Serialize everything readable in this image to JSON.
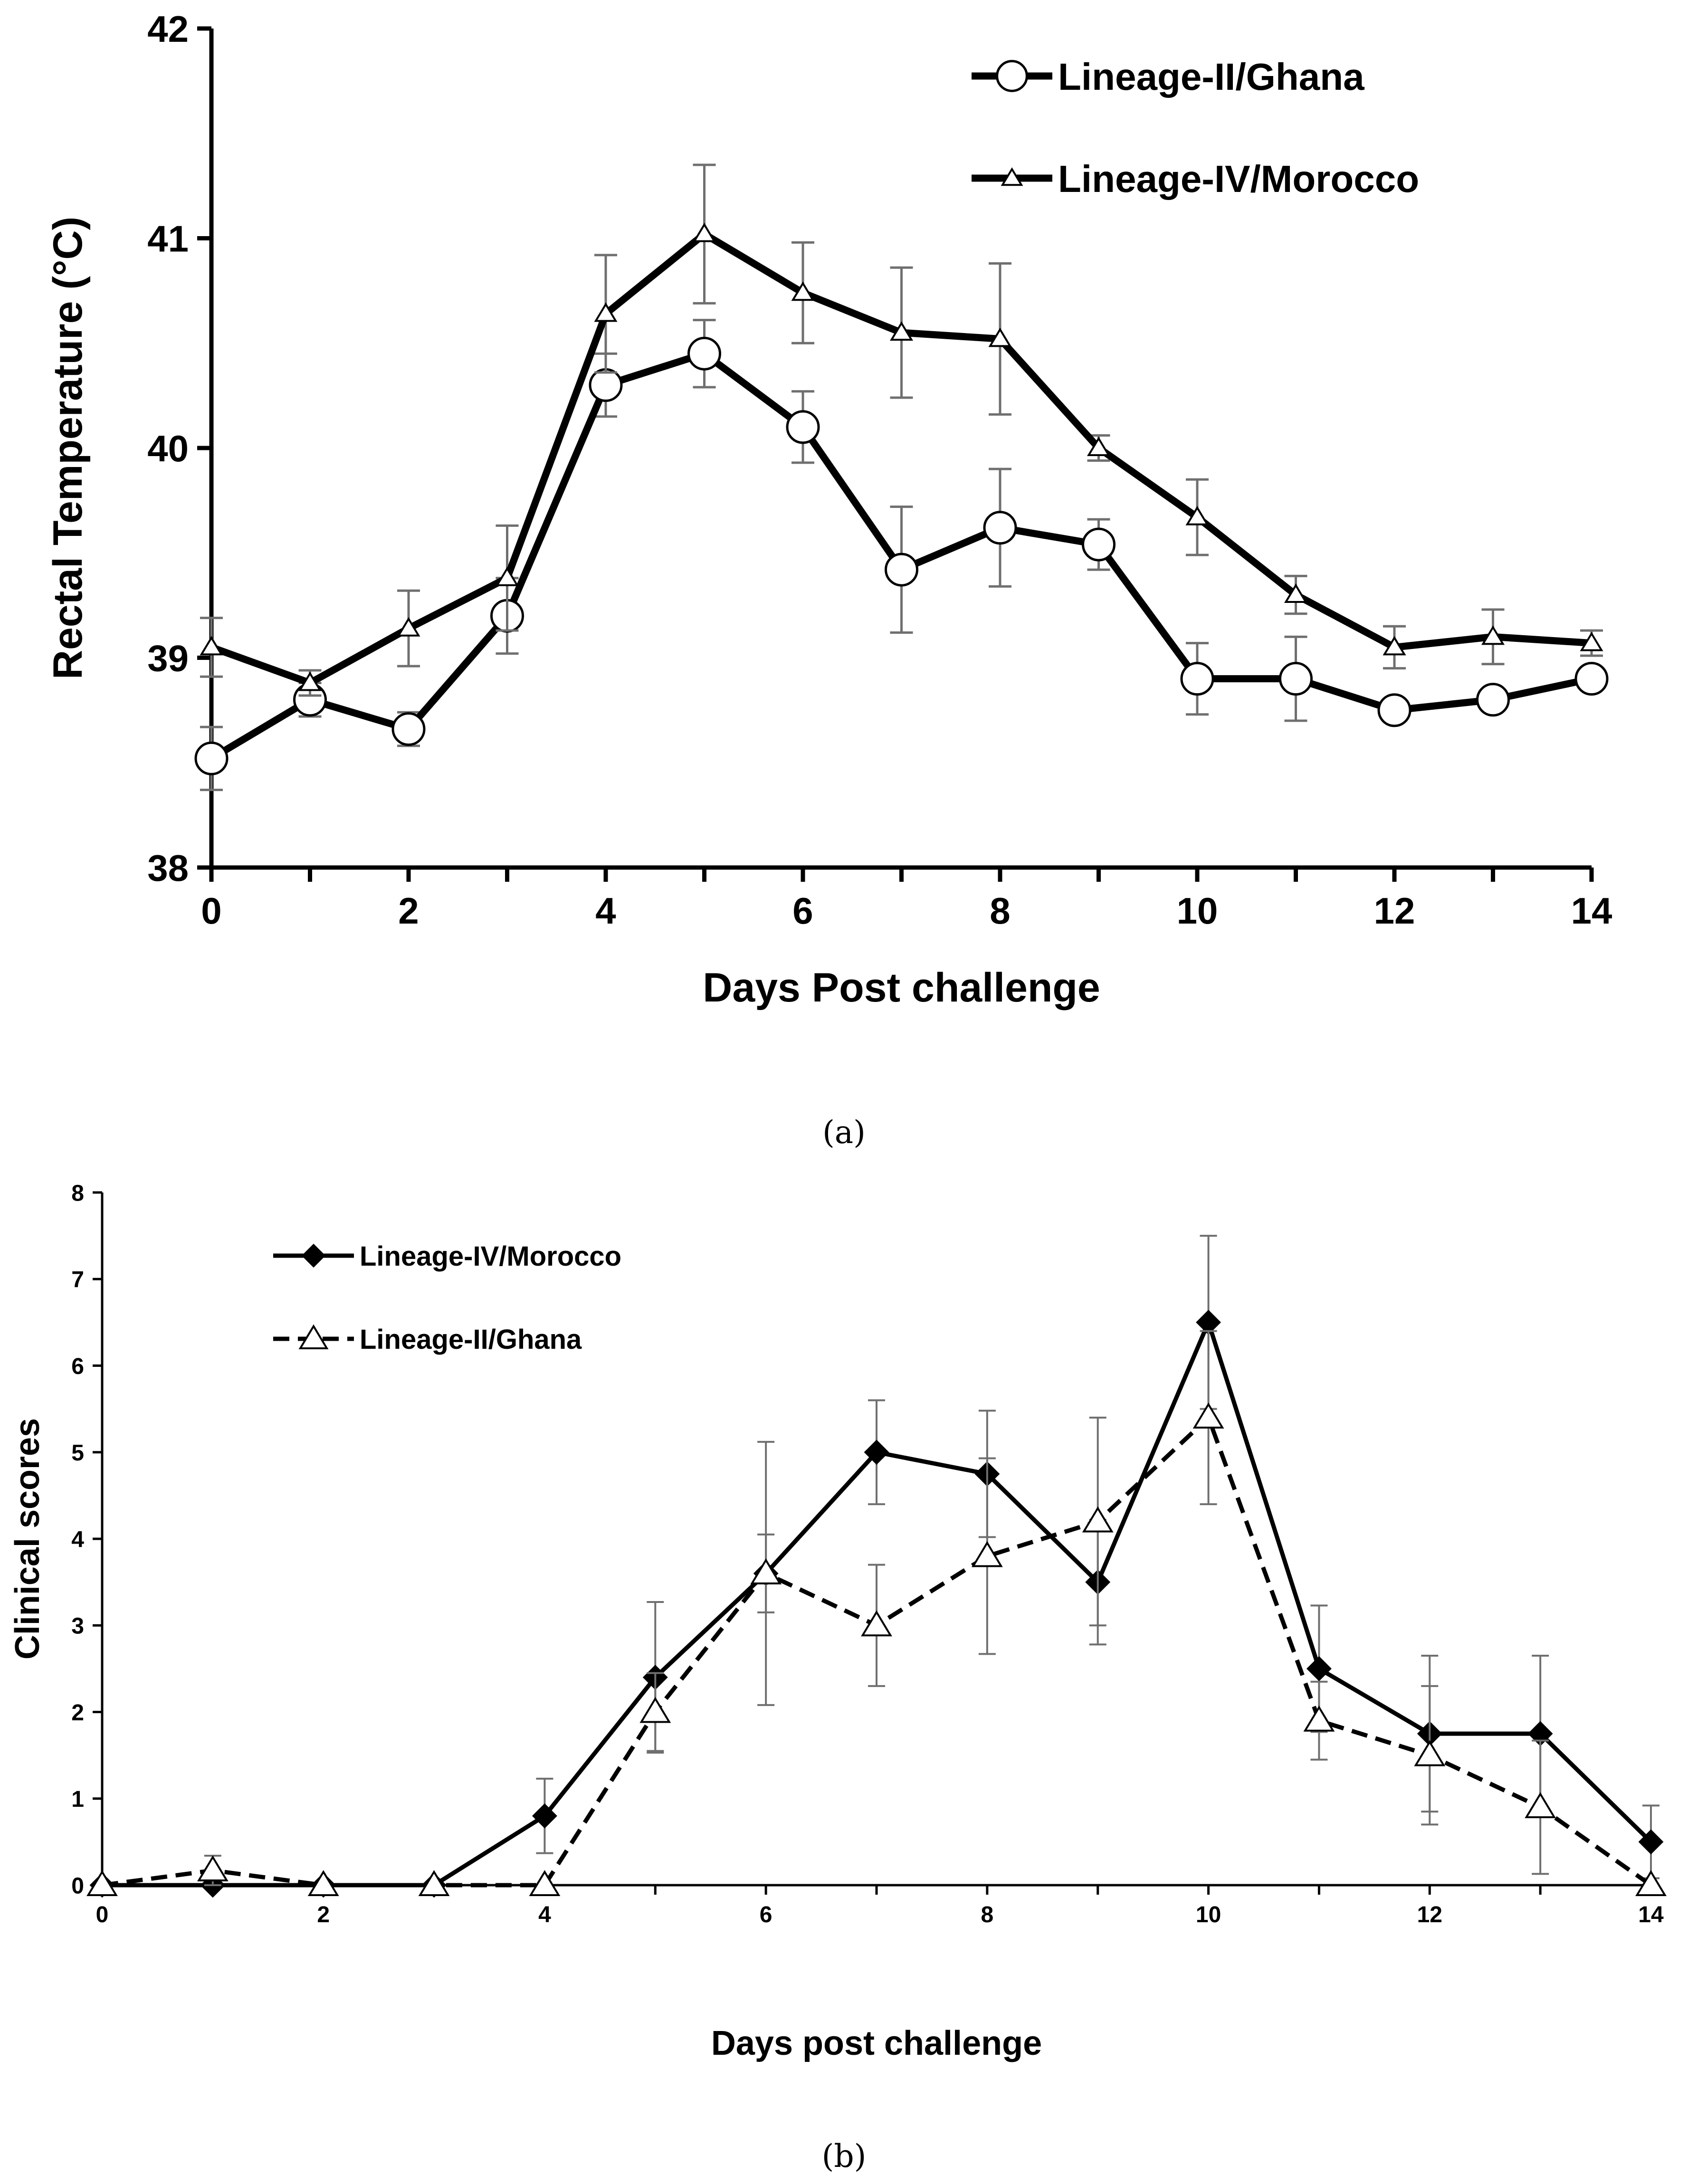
{
  "chart_data": [
    {
      "type": "line",
      "panel_label": "(a)",
      "title": "",
      "xlabel": "Days Post challenge",
      "ylabel": "Rectal Temperature (°C)",
      "xlim": [
        0,
        14
      ],
      "ylim": [
        38,
        42
      ],
      "xticks": [
        0,
        2,
        4,
        6,
        8,
        10,
        12,
        14
      ],
      "yticks": [
        38,
        39,
        40,
        41,
        42
      ],
      "grid": false,
      "legend_position": "top-right",
      "x": [
        0,
        1,
        2,
        3,
        4,
        5,
        6,
        7,
        8,
        9,
        10,
        11,
        12,
        13,
        14
      ],
      "series": [
        {
          "name": "Lineage-II/Ghana",
          "marker": "circle",
          "dash": "solid",
          "values": [
            38.52,
            38.8,
            38.66,
            39.2,
            40.3,
            40.45,
            40.1,
            39.42,
            39.62,
            39.54,
            38.9,
            38.9,
            38.75,
            38.8,
            38.9
          ],
          "errors": [
            0.15,
            0.08,
            0.08,
            0.18,
            0.15,
            0.16,
            0.17,
            0.3,
            0.28,
            0.12,
            0.17,
            0.2,
            0.03,
            0.03,
            0.03
          ]
        },
        {
          "name": "Lineage-IV/Morocco",
          "marker": "triangle-open",
          "dash": "solid",
          "values": [
            39.05,
            38.88,
            39.14,
            39.38,
            40.64,
            41.02,
            40.74,
            40.55,
            40.52,
            40.0,
            39.67,
            39.3,
            39.05,
            39.1,
            39.07
          ],
          "errors": [
            0.14,
            0.06,
            0.18,
            0.25,
            0.28,
            0.33,
            0.24,
            0.31,
            0.36,
            0.06,
            0.18,
            0.09,
            0.1,
            0.13,
            0.06
          ]
        }
      ]
    },
    {
      "type": "line",
      "panel_label": "(b)",
      "title": "",
      "xlabel": "Days post challenge",
      "ylabel": "Clinical scores",
      "xlim": [
        0,
        14
      ],
      "ylim": [
        0,
        8
      ],
      "xticks": [
        0,
        2,
        4,
        6,
        8,
        10,
        12,
        14
      ],
      "yticks": [
        0,
        1,
        2,
        3,
        4,
        5,
        6,
        7,
        8
      ],
      "grid": false,
      "legend_position": "top-left",
      "x": [
        0,
        1,
        2,
        3,
        4,
        5,
        6,
        7,
        8,
        9,
        10,
        11,
        12,
        13,
        14
      ],
      "series": [
        {
          "name": "Lineage-IV/Morocco",
          "marker": "diamond-filled",
          "dash": "solid",
          "values": [
            0,
            0,
            0,
            0,
            0.8,
            2.4,
            3.6,
            5.0,
            4.75,
            3.5,
            6.5,
            2.5,
            1.75,
            1.75,
            0.5
          ],
          "errors": [
            0,
            0,
            0,
            0,
            0.43,
            0.87,
            0.45,
            0.6,
            0.73,
            0.72,
            1.0,
            0.73,
            0.9,
            0.9,
            0.42
          ]
        },
        {
          "name": "Lineage-II/Ghana",
          "marker": "triangle-open",
          "dash": "dashed",
          "values": [
            0,
            0.17,
            0,
            0,
            0,
            2.0,
            3.6,
            3.0,
            3.8,
            4.2,
            5.4,
            1.9,
            1.5,
            0.9,
            0
          ],
          "errors": [
            0,
            0.17,
            0,
            0,
            0,
            0.45,
            1.52,
            0.7,
            1.13,
            1.2,
            1.0,
            0.45,
            0.8,
            0.77,
            0
          ]
        }
      ]
    }
  ]
}
